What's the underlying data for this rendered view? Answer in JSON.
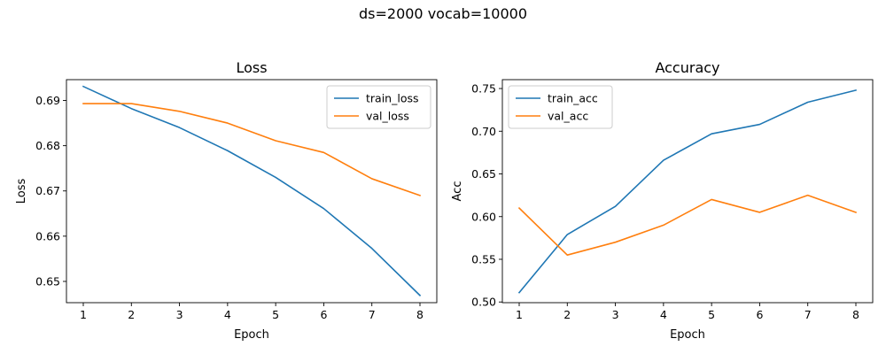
{
  "figure": {
    "suptitle": "ds=2000 vocab=10000"
  },
  "colors": {
    "series1": "#1f77b4",
    "series2": "#ff7f0e"
  },
  "chart_data": [
    {
      "type": "line",
      "title": "Loss",
      "xlabel": "Epoch",
      "ylabel": "Loss",
      "x": [
        1,
        2,
        3,
        4,
        5,
        6,
        7,
        8
      ],
      "xlim": [
        0.65,
        8.35
      ],
      "ylim": [
        0.6453,
        0.6946
      ],
      "xticks": [
        1,
        2,
        3,
        4,
        5,
        6,
        7,
        8
      ],
      "yticks": [
        0.65,
        0.66,
        0.67,
        0.68,
        0.69
      ],
      "ytick_labels": [
        "0.65",
        "0.66",
        "0.67",
        "0.68",
        "0.69"
      ],
      "grid": false,
      "legend": "top-right",
      "series": [
        {
          "name": "train_loss",
          "values": [
            0.6931,
            0.6882,
            0.684,
            0.6789,
            0.673,
            0.6661,
            0.6573,
            0.6469
          ]
        },
        {
          "name": "val_loss",
          "values": [
            0.6893,
            0.6893,
            0.6876,
            0.685,
            0.6811,
            0.6785,
            0.6727,
            0.669
          ]
        }
      ]
    },
    {
      "type": "line",
      "title": "Accuracy",
      "xlabel": "Epoch",
      "ylabel": "Acc",
      "x": [
        1,
        2,
        3,
        4,
        5,
        6,
        7,
        8
      ],
      "xlim": [
        0.65,
        8.35
      ],
      "ylim": [
        0.4992,
        0.7604
      ],
      "xticks": [
        1,
        2,
        3,
        4,
        5,
        6,
        7,
        8
      ],
      "yticks": [
        0.5,
        0.55,
        0.6,
        0.65,
        0.7,
        0.75
      ],
      "ytick_labels": [
        "0.50",
        "0.55",
        "0.60",
        "0.65",
        "0.70",
        "0.75"
      ],
      "grid": false,
      "legend": "top-left",
      "series": [
        {
          "name": "train_acc",
          "values": [
            0.511,
            0.579,
            0.612,
            0.666,
            0.697,
            0.708,
            0.734,
            0.748
          ]
        },
        {
          "name": "val_acc",
          "values": [
            0.61,
            0.555,
            0.57,
            0.59,
            0.62,
            0.605,
            0.625,
            0.605
          ]
        }
      ]
    }
  ]
}
